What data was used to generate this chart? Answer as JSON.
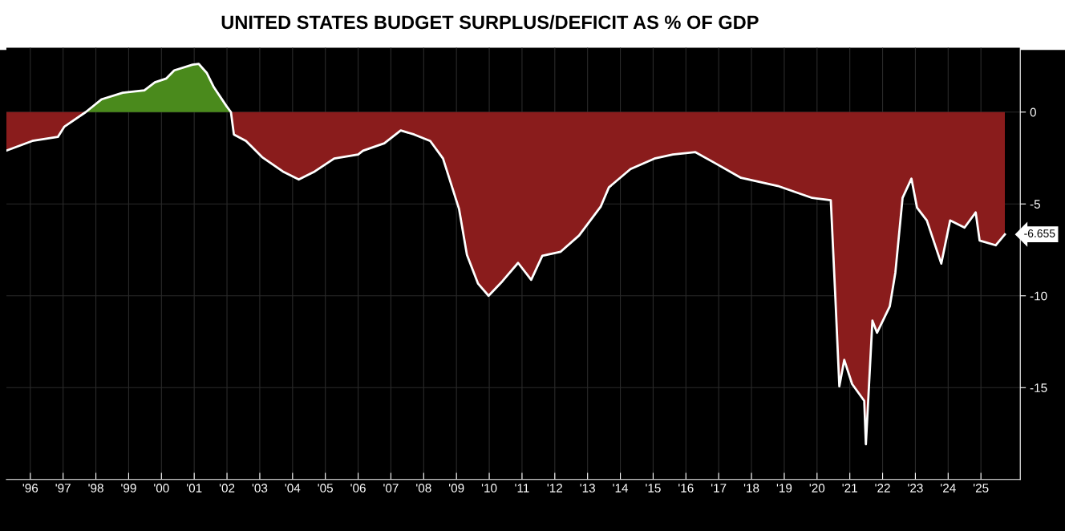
{
  "chart_data": {
    "type": "area",
    "title": "UNITED STATES BUDGET SURPLUS/DEFICIT AS % OF GDP",
    "x": [
      1995.27,
      1996.06,
      1996.84,
      1997.04,
      1997.69,
      1998.18,
      1998.82,
      1999.48,
      1999.8,
      2000.15,
      2000.39,
      2000.95,
      2001.14,
      2001.38,
      2001.6,
      2001.99,
      2002.12,
      2002.21,
      2002.58,
      2003.07,
      2003.7,
      2004.19,
      2004.68,
      2005.27,
      2006.0,
      2006.15,
      2006.8,
      2007.3,
      2007.71,
      2008.2,
      2008.59,
      2009.08,
      2009.32,
      2009.66,
      2009.98,
      2010.4,
      2010.88,
      2011.28,
      2011.62,
      2012.18,
      2012.74,
      2013.4,
      2013.65,
      2014.31,
      2015.04,
      2015.6,
      2016.29,
      2016.9,
      2017.68,
      2018.8,
      2019.85,
      2020.42,
      2020.56,
      2020.68,
      2020.83,
      2021.07,
      2021.44,
      2021.49,
      2021.69,
      2021.83,
      2022.22,
      2022.39,
      2022.61,
      2022.88,
      2023.05,
      2023.35,
      2023.79,
      2024.06,
      2024.5,
      2024.84,
      2024.96,
      2025.45,
      2025.73
    ],
    "series": [
      {
        "color": "#8a1c1c",
        "values": [
          -2.1,
          -1.57,
          -1.35,
          -0.79,
          0,
          null,
          null,
          null,
          null,
          null,
          null,
          null,
          null,
          null,
          null,
          null,
          0,
          -1.22,
          -1.57,
          -2.45,
          -3.23,
          -3.67,
          -3.23,
          -2.53,
          -2.31,
          -2.1,
          -1.7,
          -1.0,
          -1.22,
          -1.57,
          -2.53,
          -5.28,
          -7.77,
          -9.34,
          -10.0,
          -9.21,
          -8.21,
          -9.13,
          -7.82,
          -7.6,
          -6.72,
          -5.15,
          -4.1,
          -3.1,
          -2.53,
          -2.31,
          -2.18,
          -2.79,
          -3.58,
          -4.02,
          -4.67,
          -4.8,
          -10.13,
          -14.93,
          -13.49,
          -14.8,
          -15.72,
          -18.08,
          -11.35,
          -12.01,
          -10.57,
          -8.73,
          -4.67,
          -3.62,
          -5.2,
          -5.9,
          -8.25,
          -5.9,
          -6.29,
          -5.46,
          -6.99,
          -7.25,
          -6.655
        ]
      },
      {
        "color": "#4a8a1c",
        "values": [
          null,
          null,
          null,
          null,
          0,
          0.7,
          1.05,
          1.18,
          1.62,
          1.83,
          2.27,
          2.58,
          2.62,
          2.14,
          1.35,
          0.31,
          0,
          null,
          null,
          null,
          null,
          null,
          null,
          null,
          null,
          null,
          null,
          null,
          null,
          null,
          null,
          null,
          null,
          null,
          null,
          null,
          null,
          null,
          null,
          null,
          null,
          null,
          null,
          null,
          null,
          null,
          null,
          null,
          null,
          null,
          null,
          null,
          null,
          null,
          null,
          null,
          null,
          null,
          null,
          null,
          null,
          null,
          null,
          null,
          null,
          null,
          null,
          null,
          null,
          null,
          null,
          null,
          null
        ]
      },
      {
        "type": "line",
        "color": "#ffffff",
        "values": [
          -2.1,
          -1.57,
          -1.35,
          -0.79,
          0,
          0.7,
          1.05,
          1.18,
          1.62,
          1.83,
          2.27,
          2.58,
          2.62,
          2.14,
          1.35,
          0.31,
          0,
          -1.22,
          -1.57,
          -2.45,
          -3.23,
          -3.67,
          -3.23,
          -2.53,
          -2.31,
          -2.1,
          -1.7,
          -1.0,
          -1.22,
          -1.57,
          -2.53,
          -5.28,
          -7.77,
          -9.34,
          -10.0,
          -9.21,
          -8.21,
          -9.13,
          -7.82,
          -7.6,
          -6.72,
          -5.15,
          -4.1,
          -3.1,
          -2.53,
          -2.31,
          -2.18,
          -2.79,
          -3.58,
          -4.02,
          -4.67,
          -4.8,
          -10.13,
          -14.93,
          -13.49,
          -14.8,
          -15.72,
          -18.08,
          -11.35,
          -12.01,
          -10.57,
          -8.73,
          -4.67,
          -3.62,
          -5.2,
          -5.9,
          -8.25,
          -5.9,
          -6.29,
          -5.46,
          -6.99,
          -7.25,
          -6.655
        ]
      }
    ],
    "xlim": [
      1995.27,
      2026.2
    ],
    "xticks": [
      {
        "value": 1996,
        "label": "'96"
      },
      {
        "value": 1997,
        "label": "'97"
      },
      {
        "value": 1998,
        "label": "'98"
      },
      {
        "value": 1999,
        "label": "'99"
      },
      {
        "value": 2000,
        "label": "'00"
      },
      {
        "value": 2001,
        "label": "'01"
      },
      {
        "value": 2002,
        "label": "'02"
      },
      {
        "value": 2003,
        "label": "'03"
      },
      {
        "value": 2004,
        "label": "'04"
      },
      {
        "value": 2005,
        "label": "'05"
      },
      {
        "value": 2006,
        "label": "'06"
      },
      {
        "value": 2007,
        "label": "'07"
      },
      {
        "value": 2008,
        "label": "'08"
      },
      {
        "value": 2009,
        "label": "'09"
      },
      {
        "value": 2010,
        "label": "'10"
      },
      {
        "value": 2011,
        "label": "'11"
      },
      {
        "value": 2012,
        "label": "'12"
      },
      {
        "value": 2013,
        "label": "'13"
      },
      {
        "value": 2014,
        "label": "'14"
      },
      {
        "value": 2015,
        "label": "'15"
      },
      {
        "value": 2016,
        "label": "'16"
      },
      {
        "value": 2017,
        "label": "'17"
      },
      {
        "value": 2018,
        "label": "'18"
      },
      {
        "value": 2019,
        "label": "'19"
      },
      {
        "value": 2020,
        "label": "'20"
      },
      {
        "value": 2021,
        "label": "'21"
      },
      {
        "value": 2022,
        "label": "'22"
      },
      {
        "value": 2023,
        "label": "'23"
      },
      {
        "value": 2024,
        "label": "'24"
      },
      {
        "value": 2025,
        "label": "'25"
      }
    ],
    "ylim": [
      -20,
      3.5
    ],
    "yticks": [
      0,
      -5,
      -10,
      -15
    ],
    "grid": true,
    "annotations": [
      {
        "text": "-6.655",
        "x": 2025.73,
        "y": -6.655
      }
    ]
  }
}
